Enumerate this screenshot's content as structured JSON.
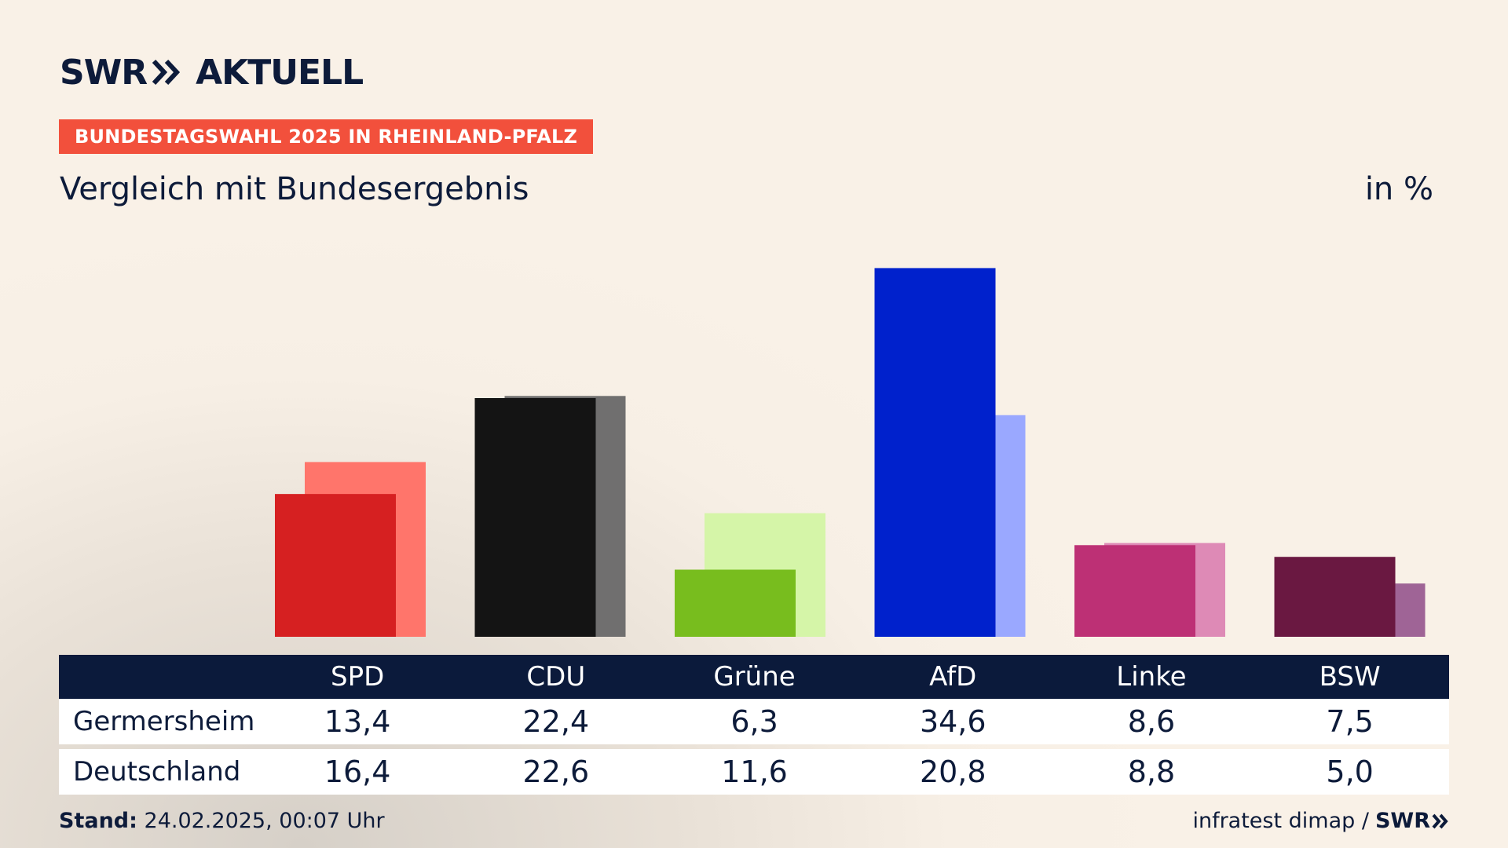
{
  "header": {
    "logo_text": "SWR",
    "logo_suffix": "AKTUELL",
    "tag": "BUNDESTAGSWAHL 2025 IN RHEINLAND-PFALZ",
    "subtitle": "Vergleich mit Bundesergebnis",
    "unit": "in %"
  },
  "chart_data": {
    "type": "bar",
    "categories": [
      "SPD",
      "CDU",
      "Grüne",
      "AfD",
      "Linke",
      "BSW"
    ],
    "series": [
      {
        "name": "Germersheim",
        "values": [
          13.4,
          22.4,
          6.3,
          34.6,
          8.6,
          7.5
        ],
        "colors": [
          "#d62021",
          "#141414",
          "#78bd1e",
          "#0021cc",
          "#bd3075",
          "#6a1841"
        ]
      },
      {
        "name": "Deutschland",
        "values": [
          16.4,
          22.6,
          11.6,
          20.8,
          8.8,
          5.0
        ],
        "colors": [
          "#ff756b",
          "#706f6f",
          "#d5f5a8",
          "#9aa8ff",
          "#de8ab6",
          "#9f6496"
        ]
      }
    ],
    "ylim": [
      0,
      35
    ]
  },
  "table": {
    "row_labels": [
      "Germersheim",
      "Deutschland"
    ],
    "rows": [
      [
        "13,4",
        "22,4",
        "6,3",
        "34,6",
        "8,6",
        "7,5"
      ],
      [
        "16,4",
        "22,6",
        "11,6",
        "20,8",
        "8,8",
        "5,0"
      ]
    ]
  },
  "footer": {
    "stand_label": "Stand:",
    "stand_value": "24.02.2025, 00:07 Uhr",
    "source": "infratest dimap /",
    "source_logo": "SWR"
  },
  "icons": {
    "logo_chevrons": "double-chevron-right-icon"
  }
}
